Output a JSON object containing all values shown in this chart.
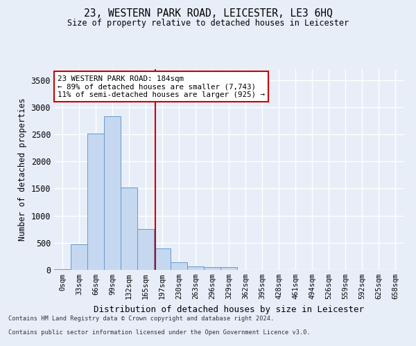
{
  "title": "23, WESTERN PARK ROAD, LEICESTER, LE3 6HQ",
  "subtitle": "Size of property relative to detached houses in Leicester",
  "xlabel": "Distribution of detached houses by size in Leicester",
  "ylabel": "Number of detached properties",
  "bar_color": "#c5d8f0",
  "bar_edge_color": "#6699cc",
  "bin_labels": [
    "0sqm",
    "33sqm",
    "66sqm",
    "99sqm",
    "132sqm",
    "165sqm",
    "197sqm",
    "230sqm",
    "263sqm",
    "296sqm",
    "329sqm",
    "362sqm",
    "395sqm",
    "428sqm",
    "461sqm",
    "494sqm",
    "526sqm",
    "559sqm",
    "592sqm",
    "625sqm",
    "658sqm"
  ],
  "bar_values": [
    18,
    470,
    2510,
    2830,
    1520,
    750,
    390,
    140,
    65,
    55,
    55,
    0,
    0,
    0,
    0,
    0,
    0,
    0,
    0,
    0,
    0
  ],
  "ylim": [
    0,
    3700
  ],
  "yticks": [
    0,
    500,
    1000,
    1500,
    2000,
    2500,
    3000,
    3500
  ],
  "vline_x": 5.58,
  "vline_color": "#cc0000",
  "annotation_text": "23 WESTERN PARK ROAD: 184sqm\n← 89% of detached houses are smaller (7,743)\n11% of semi-detached houses are larger (925) →",
  "annotation_box_color": "#ffffff",
  "annotation_box_edge": "#cc0000",
  "footer_line1": "Contains HM Land Registry data © Crown copyright and database right 2024.",
  "footer_line2": "Contains public sector information licensed under the Open Government Licence v3.0.",
  "fig_bg_color": "#e8eef8",
  "plot_bg_color": "#e8eef8",
  "grid_color": "#ffffff"
}
